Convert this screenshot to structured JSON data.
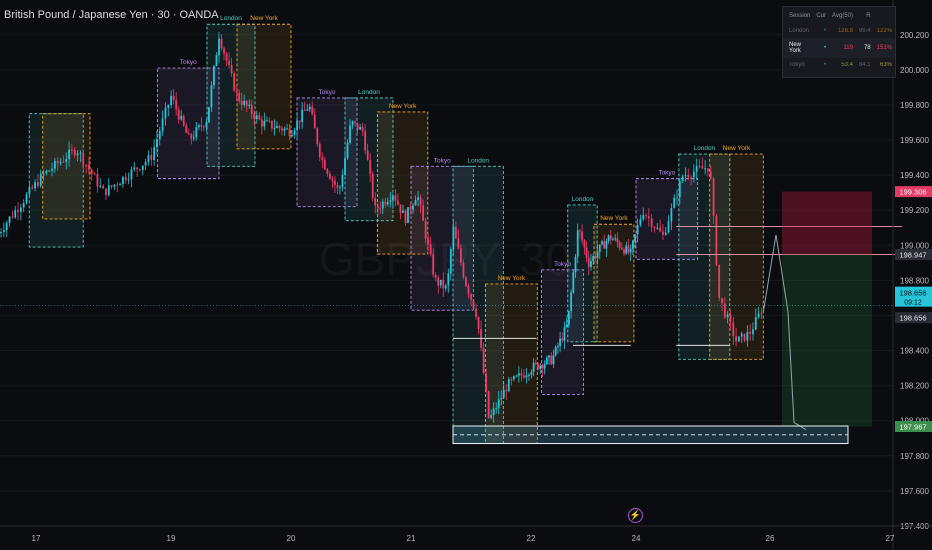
{
  "symbol_title": "British Pound / Japanese Yen · 30 · OANDA",
  "watermark": "GBPJPY, 30",
  "colors": {
    "bull": "#26c6da",
    "bear": "#ef3b67",
    "tokyo": "#b48cf0",
    "london": "#4fd1c5",
    "newyork": "#f5a623",
    "background": "#0b0c10",
    "target_zone": "#4fa3c7"
  },
  "stats_table": {
    "headers": [
      "Session",
      "Cur",
      "Avg(50)",
      "R"
    ],
    "rows": [
      {
        "session": "London",
        "dot": "•",
        "cur": "128.8",
        "avg": "99.4",
        "r": "122%",
        "style": "dim"
      },
      {
        "session": "New York",
        "dot": "•",
        "cur": "119",
        "avg": "78",
        "r": "151%",
        "style": "active"
      },
      {
        "session": "Tokyo",
        "dot": "•",
        "cur": "53.4",
        "avg": "84.1",
        "r": "63%",
        "style": "dim"
      }
    ]
  },
  "chart_data": {
    "type": "candlestick",
    "title": "British Pound / Japanese Yen · 30 · OANDA",
    "x_ticks": [
      "17",
      "19",
      "20",
      "21",
      "22",
      "24",
      "26",
      "27"
    ],
    "y_ticks": [
      "200.200",
      "200.000",
      "199.800",
      "199.600",
      "199.400",
      "199.200",
      "199.000",
      "198.800",
      "198.600",
      "198.400",
      "198.200",
      "198.000",
      "197.800",
      "197.600",
      "197.400"
    ],
    "ylim": [
      197.4,
      200.25
    ],
    "price_labels": [
      {
        "text": "199.306",
        "value": 199.306,
        "kind": "target"
      },
      {
        "text": "198.947",
        "value": 198.947,
        "kind": "level"
      },
      {
        "text": "198.656",
        "value": 198.656,
        "kind": "current",
        "countdown": "09:12"
      },
      {
        "text": "198.656",
        "value": 198.656,
        "kind": "last"
      },
      {
        "text": "197.967",
        "value": 197.967,
        "kind": "stop"
      }
    ],
    "sessions": [
      {
        "name": "Tokyo",
        "day": 0.9,
        "width": 0.5,
        "high": 200.01,
        "low": 199.38,
        "label": "Tokyo"
      },
      {
        "name": "London",
        "day": 1.3,
        "width": 0.4,
        "high": 200.26,
        "low": 199.45,
        "label": "London"
      },
      {
        "name": "New York",
        "day": 1.55,
        "width": 0.45,
        "high": 200.26,
        "low": 199.55,
        "label": "New York"
      },
      {
        "name": "Tokyo",
        "day": 2.05,
        "width": 0.5,
        "high": 199.84,
        "low": 199.22,
        "label": "Tokyo"
      },
      {
        "name": "London",
        "day": 2.45,
        "width": 0.4,
        "high": 199.84,
        "low": 199.14,
        "label": "London"
      },
      {
        "name": "New York",
        "day": 2.72,
        "width": 0.42,
        "high": 199.76,
        "low": 198.95,
        "label": "New York"
      },
      {
        "name": "London",
        "day": -0.05,
        "width": 0.4,
        "high": 199.75,
        "low": 198.99,
        "label": ""
      },
      {
        "name": "New York",
        "day": 0.05,
        "width": 0.35,
        "high": 199.75,
        "low": 199.15,
        "label": ""
      },
      {
        "name": "Tokyo",
        "day": 3.0,
        "width": 0.52,
        "high": 199.45,
        "low": 198.63,
        "label": "Tokyo"
      },
      {
        "name": "London",
        "day": 3.35,
        "width": 0.42,
        "high": 199.45,
        "low": 197.87,
        "label": "London"
      },
      {
        "name": "New York",
        "day": 3.62,
        "width": 0.44,
        "high": 198.78,
        "low": 197.87,
        "label": "New York"
      },
      {
        "name": "Tokyo",
        "day": 4.1,
        "width": 0.4,
        "high": 198.86,
        "low": 198.15,
        "label": "Tokyo"
      },
      {
        "name": "London",
        "day": 4.35,
        "width": 0.28,
        "high": 199.23,
        "low": 198.45,
        "label": "London"
      },
      {
        "name": "New York",
        "day": 4.6,
        "width": 0.38,
        "high": 199.12,
        "low": 198.45,
        "label": "New York"
      },
      {
        "name": "Tokyo",
        "day": 5.0,
        "width": 0.46,
        "high": 199.38,
        "low": 198.92,
        "label": "Tokyo"
      },
      {
        "name": "London",
        "day": 5.32,
        "width": 0.38,
        "high": 199.52,
        "low": 198.35,
        "label": "London"
      },
      {
        "name": "New York",
        "day": 5.55,
        "width": 0.4,
        "high": 199.52,
        "low": 198.35,
        "label": "New York"
      }
    ],
    "horizontal_levels": [
      {
        "value": 199.107,
        "from_day": 5.3,
        "to_day": 7.1,
        "color": "#f2a0b4"
      },
      {
        "value": 198.947,
        "from_day": 5.3,
        "to_day": 7.1,
        "color": "#f2a0b4"
      },
      {
        "value": 198.47,
        "from_day": 3.35,
        "to_day": 4.05,
        "color": "#ffffff"
      },
      {
        "value": 198.43,
        "from_day": 4.4,
        "to_day": 4.95,
        "color": "#ffffff"
      },
      {
        "value": 198.43,
        "from_day": 5.3,
        "to_day": 5.7,
        "color": "#ffffff"
      }
    ],
    "position_tool": {
      "from_day": 6.1,
      "to_day": 6.85,
      "entry": 198.947,
      "target": 199.306,
      "stop": 197.967
    },
    "projection_path": [
      [
        5.95,
        198.62
      ],
      [
        6.05,
        199.06
      ],
      [
        6.15,
        198.62
      ],
      [
        6.2,
        197.99
      ],
      [
        6.3,
        197.95
      ]
    ],
    "target_zone": {
      "from_day": 3.35,
      "to_day": 7.5,
      "top": 197.97,
      "bottom": 197.87,
      "mid": 197.92
    }
  }
}
